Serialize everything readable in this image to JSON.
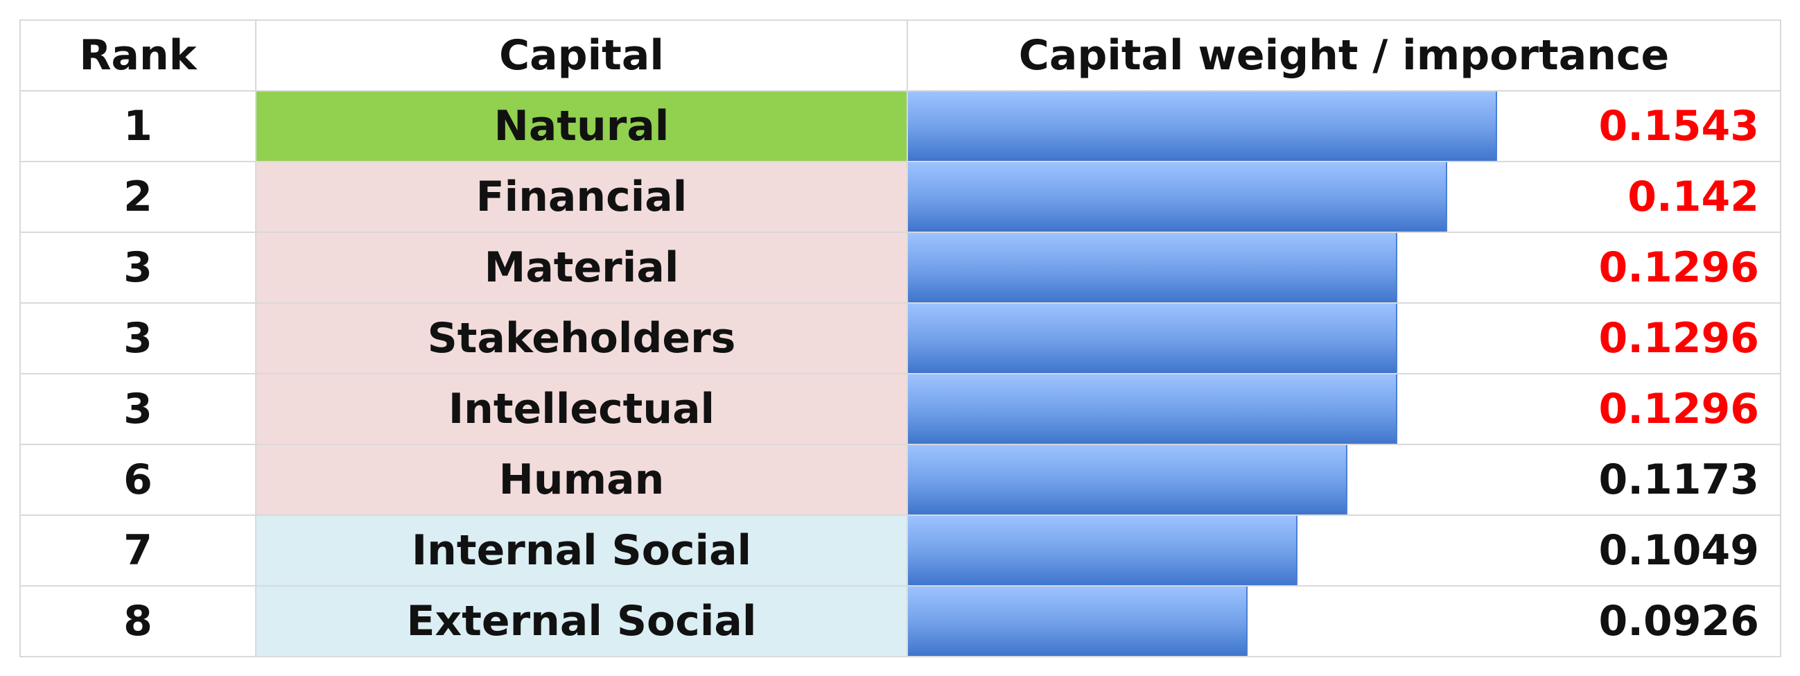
{
  "chart_data": {
    "type": "table",
    "title": "",
    "columns": [
      "Rank",
      "Capital",
      "Capital weight / importance"
    ],
    "max_value": 0.1543,
    "rows": [
      {
        "rank": "1",
        "capital": "Natural",
        "weight": 0.1543,
        "weight_text": "0.1543",
        "bg": "#92d050",
        "value_color": "#ff0000"
      },
      {
        "rank": "2",
        "capital": "Financial",
        "weight": 0.142,
        "weight_text": "0.142",
        "bg": "#f2dcdb",
        "value_color": "#ff0000"
      },
      {
        "rank": "3",
        "capital": "Material",
        "weight": 0.1296,
        "weight_text": "0.1296",
        "bg": "#f2dcdb",
        "value_color": "#ff0000"
      },
      {
        "rank": "3",
        "capital": "Stakeholders",
        "weight": 0.1296,
        "weight_text": "0.1296",
        "bg": "#f2dcdb",
        "value_color": "#ff0000"
      },
      {
        "rank": "3",
        "capital": "Intellectual",
        "weight": 0.1296,
        "weight_text": "0.1296",
        "bg": "#f2dcdb",
        "value_color": "#ff0000"
      },
      {
        "rank": "6",
        "capital": "Human",
        "weight": 0.1173,
        "weight_text": "0.1173",
        "bg": "#f2dcdb",
        "value_color": "#111111"
      },
      {
        "rank": "7",
        "capital": "Internal Social",
        "weight": 0.1049,
        "weight_text": "0.1049",
        "bg": "#daeef3",
        "value_color": "#111111"
      },
      {
        "rank": "8",
        "capital": "External Social",
        "weight": 0.0926,
        "weight_text": "0.0926",
        "bg": "#daeef3",
        "value_color": "#111111"
      }
    ]
  }
}
